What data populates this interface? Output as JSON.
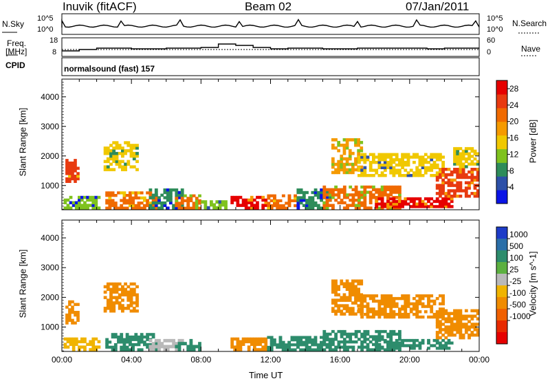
{
  "header": {
    "station": "Inuvik (fitACF)",
    "beam": "Beam 02",
    "date": "07/Jan/2011"
  },
  "panels": {
    "nsky_label": "N.Sky",
    "nsky_ticks": [
      "10^5",
      "10^0"
    ],
    "nsearch_label": "N.Search",
    "nsearch_ticks": [
      "10^5",
      "10^0"
    ],
    "freq_label_1": "Freq.",
    "freq_label_2": "[MHz]",
    "freq_ticks": [
      "18",
      "8"
    ],
    "nave_label": "Nave",
    "nave_ticks": [
      "60",
      "0"
    ],
    "cpid_label": "CPID",
    "cpid_value": "normalsound (fast) 157"
  },
  "colors": {
    "power": [
      "#0a14e6",
      "#2d50a8",
      "#2e8c5a",
      "#7fc21e",
      "#f0c800",
      "#f59a00",
      "#f06a00",
      "#e83a10",
      "#e60000"
    ],
    "velocity": [
      "#1d3cc8",
      "#2a6ea8",
      "#2d8c6c",
      "#5cb040",
      "#b9b9b9",
      "#f0b400",
      "#f08c00",
      "#f06000",
      "#e82a00",
      "#e60000"
    ]
  },
  "chart_data": [
    {
      "type": "heatmap",
      "title": "Power",
      "xlabel": "Time UT",
      "ylabel": "Slant Range [km]",
      "x_ticks": [
        "00:00",
        "04:00",
        "08:00",
        "12:00",
        "16:00",
        "20:00",
        "00:00"
      ],
      "y_ticks": [
        "1000",
        "2000",
        "3000",
        "4000"
      ],
      "ylim": [
        180,
        4600
      ],
      "colorbar": {
        "label": "Power [dB]",
        "ticks": [
          "4",
          "8",
          "12",
          "16",
          "20",
          "24",
          "28"
        ],
        "range": [
          0,
          30
        ]
      },
      "regions": [
        {
          "t0": 0.1,
          "t1": 2.2,
          "r0": 200,
          "r1": 650,
          "value": 10
        },
        {
          "t0": 0.2,
          "t1": 1.0,
          "r0": 1100,
          "r1": 1900,
          "value": 24
        },
        {
          "t0": 2.4,
          "t1": 4.4,
          "r0": 1500,
          "r1": 2500,
          "value": 16
        },
        {
          "t0": 2.5,
          "t1": 5.5,
          "r0": 200,
          "r1": 800,
          "value": 22
        },
        {
          "t0": 5.0,
          "t1": 7.0,
          "r0": 200,
          "r1": 900,
          "value": 8
        },
        {
          "t0": 6.5,
          "t1": 8.0,
          "r0": 200,
          "r1": 700,
          "value": 20
        },
        {
          "t0": 8.0,
          "t1": 9.5,
          "r0": 200,
          "r1": 500,
          "value": 12
        },
        {
          "t0": 9.7,
          "t1": 11.8,
          "r0": 200,
          "r1": 650,
          "value": 27
        },
        {
          "t0": 11.8,
          "t1": 13.5,
          "r0": 200,
          "r1": 700,
          "value": 22
        },
        {
          "t0": 13.5,
          "t1": 15.5,
          "r0": 200,
          "r1": 900,
          "value": 8
        },
        {
          "t0": 15.5,
          "t1": 17.3,
          "r0": 1400,
          "r1": 2600,
          "value": 18
        },
        {
          "t0": 15.0,
          "t1": 19.5,
          "r0": 200,
          "r1": 1000,
          "value": 20
        },
        {
          "t0": 17.0,
          "t1": 22.0,
          "r0": 1300,
          "r1": 2100,
          "value": 14
        },
        {
          "t0": 18.0,
          "t1": 22.5,
          "r0": 250,
          "r1": 600,
          "value": 27
        },
        {
          "t0": 21.5,
          "t1": 24.0,
          "r0": 600,
          "r1": 1600,
          "value": 25
        },
        {
          "t0": 22.5,
          "t1": 24.0,
          "r0": 1600,
          "r1": 2300,
          "value": 16
        }
      ]
    },
    {
      "type": "heatmap",
      "title": "Velocity",
      "xlabel": "Time UT",
      "ylabel": "Slant Range [km]",
      "x_ticks": [
        "00:00",
        "04:00",
        "08:00",
        "12:00",
        "16:00",
        "20:00",
        "00:00"
      ],
      "y_ticks": [
        "1000",
        "2000",
        "3000",
        "4000"
      ],
      "ylim": [
        180,
        4600
      ],
      "colorbar": {
        "label": "Velocity [m s^-1]",
        "ticks": [
          "1000",
          "500",
          "100",
          "25",
          "-25",
          "-100",
          "-500",
          "-1000"
        ]
      },
      "regions": [
        {
          "t0": 0.2,
          "t1": 1.0,
          "r0": 1100,
          "r1": 1900,
          "value": -300
        },
        {
          "t0": 0.1,
          "t1": 2.2,
          "r0": 200,
          "r1": 650,
          "value": -100
        },
        {
          "t0": 2.4,
          "t1": 4.4,
          "r0": 1500,
          "r1": 2500,
          "value": -200
        },
        {
          "t0": 2.5,
          "t1": 5.5,
          "r0": 200,
          "r1": 800,
          "value": 150
        },
        {
          "t0": 5.0,
          "t1": 7.0,
          "r0": 200,
          "r1": 600,
          "value": 0
        },
        {
          "t0": 6.5,
          "t1": 8.0,
          "r0": 200,
          "r1": 600,
          "value": 200
        },
        {
          "t0": 9.7,
          "t1": 11.8,
          "r0": 200,
          "r1": 650,
          "value": -150
        },
        {
          "t0": 11.8,
          "t1": 15.5,
          "r0": 200,
          "r1": 700,
          "value": 300
        },
        {
          "t0": 15.5,
          "t1": 17.3,
          "r0": 1400,
          "r1": 2600,
          "value": -400
        },
        {
          "t0": 15.0,
          "t1": 19.5,
          "r0": 200,
          "r1": 900,
          "value": 250
        },
        {
          "t0": 17.0,
          "t1": 22.0,
          "r0": 1300,
          "r1": 2100,
          "value": -350
        },
        {
          "t0": 18.0,
          "t1": 22.5,
          "r0": 250,
          "r1": 600,
          "value": 300
        },
        {
          "t0": 21.5,
          "t1": 24.0,
          "r0": 600,
          "r1": 1600,
          "value": -200
        }
      ]
    }
  ]
}
